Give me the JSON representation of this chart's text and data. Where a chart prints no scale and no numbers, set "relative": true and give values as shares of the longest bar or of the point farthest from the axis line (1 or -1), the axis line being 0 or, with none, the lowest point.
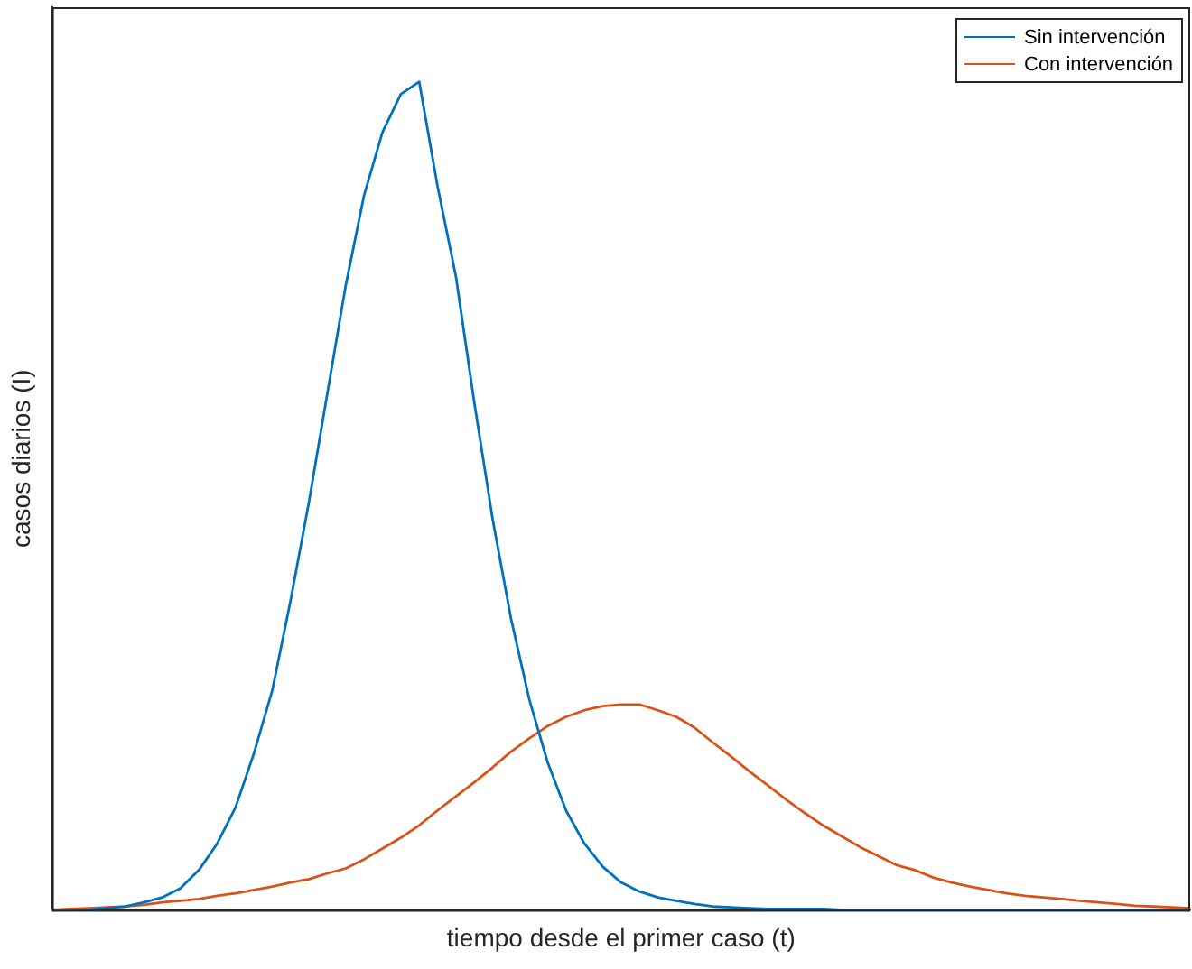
{
  "chart_data": {
    "type": "line",
    "relative": true,
    "xlabel": "tiempo desde el primer caso (t)",
    "ylabel": "casos diarios (I)",
    "legend": "top right",
    "grid": false,
    "marker": "none",
    "categories": [
      null,
      null,
      null,
      null,
      null,
      null,
      null,
      null,
      null,
      null,
      null,
      null,
      null,
      null,
      null,
      null,
      null,
      null,
      null,
      null,
      null,
      null,
      null,
      null,
      null,
      null,
      null,
      null,
      null,
      null,
      null,
      null,
      null,
      null,
      null,
      null,
      null,
      null,
      null,
      null,
      null,
      null,
      null,
      null,
      null,
      null,
      null,
      null,
      null,
      null,
      null,
      null,
      null,
      null,
      null,
      null,
      null,
      null,
      null,
      null,
      null,
      null,
      null
    ],
    "series": [
      {
        "name": "Sin intervención",
        "color": "#0072bd",
        "values": [
          0,
          0,
          0,
          0.002,
          0.004,
          0.009,
          0.015,
          0.026,
          0.048,
          0.08,
          0.124,
          0.189,
          0.265,
          0.374,
          0.493,
          0.624,
          0.754,
          0.863,
          0.939,
          0.985,
          1,
          0.874,
          0.765,
          0.613,
          0.472,
          0.352,
          0.254,
          0.178,
          0.12,
          0.08,
          0.052,
          0.033,
          0.022,
          0.015,
          0.011,
          0.007,
          0.004,
          0.003,
          0.002,
          0.001,
          0.001,
          0.001,
          0.001,
          0,
          0,
          0,
          0,
          0,
          0,
          0,
          0,
          0,
          0,
          0,
          0,
          0,
          0,
          0,
          0,
          0,
          0,
          0,
          0
        ]
      },
      {
        "name": "Con intervención",
        "color": "#d95319",
        "values": [
          0,
          0.001,
          0.002,
          0.003,
          0.004,
          0.006,
          0.009,
          0.011,
          0.013,
          0.017,
          0.02,
          0.024,
          0.028,
          0.033,
          0.037,
          0.044,
          0.05,
          0.061,
          0.074,
          0.087,
          0.102,
          0.12,
          0.137,
          0.154,
          0.172,
          0.191,
          0.207,
          0.222,
          0.233,
          0.241,
          0.246,
          0.248,
          0.248,
          0.241,
          0.233,
          0.22,
          0.202,
          0.185,
          0.167,
          0.15,
          0.133,
          0.117,
          0.102,
          0.089,
          0.076,
          0.065,
          0.054,
          0.048,
          0.039,
          0.033,
          0.028,
          0.024,
          0.02,
          0.017,
          0.015,
          0.013,
          0.011,
          0.009,
          0.007,
          0.005,
          0.004,
          0.003,
          0.002
        ]
      }
    ]
  }
}
